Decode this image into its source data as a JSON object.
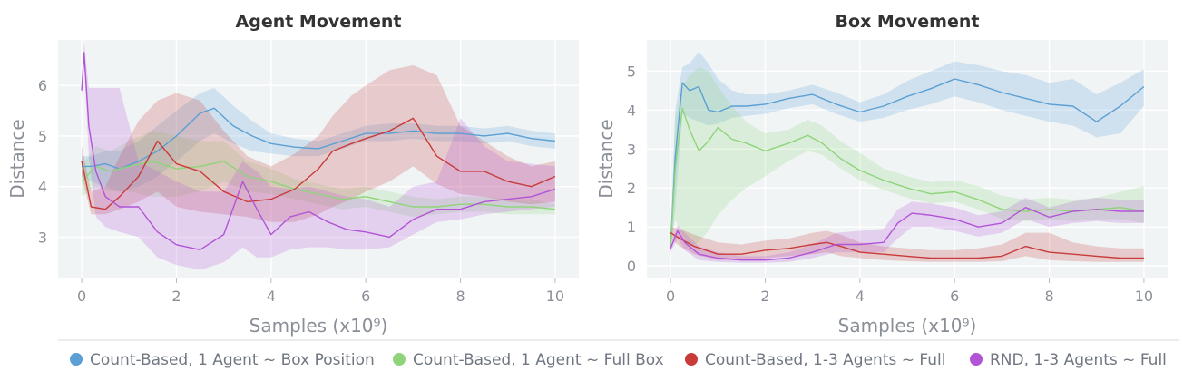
{
  "chart_data": [
    {
      "type": "line",
      "title": "Agent Movement",
      "xlabel": "Samples (x10⁹)",
      "ylabel": "Distance",
      "xlim": [
        -0.5,
        10.5
      ],
      "ylim": [
        2.2,
        6.9
      ],
      "xticks": [
        0,
        2,
        4,
        6,
        8,
        10
      ],
      "yticks": [
        3,
        4,
        5,
        6
      ],
      "grid": true,
      "series": [
        {
          "name": "Count-Based, 1 Agent ~ Box Position",
          "color": "#5b9fd4",
          "x": [
            0.0,
            0.2,
            0.5,
            0.8,
            1.2,
            1.6,
            2.0,
            2.5,
            2.8,
            3.2,
            3.6,
            4.0,
            4.5,
            5.0,
            5.5,
            6.0,
            6.5,
            7.0,
            7.5,
            8.0,
            8.5,
            9.0,
            9.5,
            10.0
          ],
          "y": [
            4.4,
            4.4,
            4.45,
            4.35,
            4.5,
            4.7,
            5.0,
            5.45,
            5.55,
            5.2,
            5.0,
            4.85,
            4.78,
            4.75,
            4.9,
            5.05,
            5.05,
            5.1,
            5.05,
            5.05,
            5.0,
            5.05,
            4.95,
            4.9
          ],
          "lower": [
            4.2,
            4.1,
            4.0,
            3.9,
            4.0,
            4.2,
            4.5,
            4.9,
            5.05,
            4.85,
            4.7,
            4.65,
            4.6,
            4.6,
            4.75,
            4.9,
            4.9,
            4.95,
            4.9,
            4.9,
            4.85,
            4.9,
            4.8,
            4.75
          ],
          "upper": [
            4.6,
            4.6,
            4.7,
            4.7,
            4.9,
            5.2,
            5.5,
            5.85,
            5.95,
            5.6,
            5.3,
            5.05,
            4.95,
            4.9,
            5.05,
            5.2,
            5.25,
            5.25,
            5.2,
            5.2,
            5.15,
            5.2,
            5.1,
            5.05
          ]
        },
        {
          "name": "Count-Based, 1 Agent ~ Full Box",
          "color": "#8fd47a",
          "x": [
            0.0,
            0.3,
            0.6,
            1.0,
            1.5,
            2.0,
            2.5,
            3.0,
            3.5,
            4.0,
            4.5,
            5.0,
            5.5,
            6.0,
            6.5,
            7.0,
            7.5,
            8.0,
            8.5,
            9.0,
            9.5,
            10.0
          ],
          "y": [
            4.1,
            4.4,
            4.3,
            4.4,
            4.5,
            4.35,
            4.4,
            4.5,
            4.2,
            4.1,
            3.95,
            3.85,
            3.75,
            3.8,
            3.7,
            3.6,
            3.6,
            3.65,
            3.65,
            3.6,
            3.6,
            3.55
          ],
          "lower": [
            3.8,
            4.0,
            3.9,
            3.9,
            3.8,
            3.8,
            3.9,
            4.1,
            3.9,
            3.85,
            3.75,
            3.65,
            3.55,
            3.6,
            3.5,
            3.4,
            3.45,
            3.5,
            3.5,
            3.45,
            3.45,
            3.45
          ],
          "upper": [
            4.4,
            4.8,
            4.7,
            4.9,
            5.1,
            5.0,
            4.9,
            4.9,
            4.5,
            4.35,
            4.15,
            4.05,
            3.95,
            4.0,
            3.9,
            3.8,
            3.75,
            3.8,
            3.8,
            3.75,
            3.75,
            3.65
          ]
        },
        {
          "name": "Count-Based, 1-3 Agents ~ Full",
          "color": "#c93a3a",
          "x": [
            0.0,
            0.2,
            0.5,
            0.8,
            1.2,
            1.6,
            2.0,
            2.5,
            3.0,
            3.5,
            4.0,
            4.5,
            5.0,
            5.3,
            5.7,
            6.0,
            6.5,
            7.0,
            7.5,
            8.0,
            8.5,
            9.0,
            9.5,
            10.0
          ],
          "y": [
            4.5,
            3.6,
            3.55,
            3.8,
            4.2,
            4.9,
            4.45,
            4.3,
            3.9,
            3.7,
            3.75,
            3.95,
            4.35,
            4.7,
            4.85,
            4.95,
            5.1,
            5.35,
            4.6,
            4.3,
            4.3,
            4.1,
            4.0,
            4.2
          ],
          "lower": [
            4.2,
            3.45,
            3.45,
            3.55,
            3.7,
            3.9,
            3.6,
            3.5,
            3.45,
            3.4,
            3.3,
            3.3,
            3.45,
            3.6,
            3.75,
            3.9,
            4.1,
            4.4,
            4.05,
            3.85,
            3.8,
            3.7,
            3.65,
            3.7
          ],
          "upper": [
            4.8,
            3.9,
            4.0,
            4.6,
            5.3,
            5.7,
            5.85,
            5.7,
            5.1,
            4.6,
            4.4,
            4.65,
            5.0,
            5.4,
            5.8,
            6.0,
            6.3,
            6.4,
            6.2,
            5.2,
            4.9,
            4.6,
            4.4,
            4.5
          ]
        },
        {
          "name": "RND, 1-3 Agents ~ Full",
          "color": "#b254d6",
          "x": [
            0.0,
            0.05,
            0.15,
            0.3,
            0.5,
            0.8,
            1.2,
            1.6,
            2.0,
            2.5,
            3.0,
            3.4,
            3.7,
            4.0,
            4.4,
            4.8,
            5.2,
            5.6,
            6.0,
            6.5,
            7.0,
            7.5,
            8.0,
            8.5,
            9.0,
            9.5,
            10.0
          ],
          "y": [
            5.9,
            6.65,
            5.2,
            4.3,
            3.8,
            3.6,
            3.6,
            3.1,
            2.85,
            2.75,
            3.05,
            4.1,
            3.55,
            3.05,
            3.4,
            3.5,
            3.3,
            3.15,
            3.1,
            3.0,
            3.35,
            3.55,
            3.55,
            3.7,
            3.75,
            3.8,
            3.95
          ],
          "lower": [
            5.7,
            6.4,
            4.6,
            3.4,
            3.2,
            3.1,
            3.0,
            2.6,
            2.45,
            2.35,
            2.5,
            2.8,
            2.6,
            2.6,
            2.75,
            2.8,
            2.8,
            2.75,
            2.75,
            2.8,
            3.05,
            3.3,
            3.35,
            3.45,
            3.5,
            3.55,
            3.6
          ],
          "upper": [
            6.1,
            6.85,
            5.95,
            5.95,
            5.95,
            5.95,
            4.5,
            4.3,
            4.1,
            3.9,
            3.9,
            4.5,
            4.3,
            4.0,
            3.95,
            4.0,
            3.9,
            3.8,
            3.75,
            3.6,
            4.0,
            4.1,
            5.35,
            4.8,
            4.5,
            4.45,
            4.4
          ]
        }
      ]
    },
    {
      "type": "line",
      "title": "Box Movement",
      "xlabel": "Samples (x10⁹)",
      "ylabel": "Distance",
      "xlim": [
        -0.5,
        10.5
      ],
      "ylim": [
        -0.3,
        5.8
      ],
      "xticks": [
        0,
        2,
        4,
        6,
        8,
        10
      ],
      "yticks": [
        0,
        1,
        2,
        3,
        4,
        5
      ],
      "grid": true,
      "series": [
        {
          "name": "Count-Based, 1 Agent ~ Box Position",
          "color": "#5b9fd4",
          "x": [
            0.0,
            0.1,
            0.25,
            0.4,
            0.6,
            0.8,
            1.0,
            1.3,
            1.6,
            2.0,
            2.5,
            3.0,
            3.5,
            4.0,
            4.5,
            5.0,
            5.5,
            6.0,
            6.5,
            7.0,
            7.5,
            8.0,
            8.5,
            9.0,
            9.5,
            10.0
          ],
          "y": [
            0.5,
            2.8,
            4.7,
            4.5,
            4.6,
            4.0,
            3.95,
            4.1,
            4.1,
            4.15,
            4.3,
            4.4,
            4.15,
            3.95,
            4.1,
            4.35,
            4.55,
            4.8,
            4.65,
            4.45,
            4.3,
            4.15,
            4.1,
            3.7,
            4.1,
            4.6
          ],
          "lower": [
            0.4,
            1.5,
            3.9,
            3.8,
            3.7,
            3.6,
            3.65,
            3.8,
            3.85,
            3.9,
            4.05,
            4.15,
            3.9,
            3.7,
            3.8,
            4.0,
            4.15,
            4.35,
            4.2,
            4.0,
            3.85,
            3.7,
            3.6,
            3.3,
            3.4,
            4.1
          ],
          "upper": [
            0.6,
            4.0,
            5.1,
            5.2,
            5.5,
            5.2,
            4.8,
            4.5,
            4.4,
            4.4,
            4.5,
            4.65,
            4.45,
            4.2,
            4.4,
            4.75,
            5.0,
            5.25,
            5.15,
            5.0,
            4.9,
            4.7,
            4.8,
            4.4,
            4.7,
            5.05
          ]
        },
        {
          "name": "Count-Based, 1 Agent ~ Full Box",
          "color": "#8fd47a",
          "x": [
            0.0,
            0.1,
            0.25,
            0.4,
            0.6,
            0.8,
            1.0,
            1.3,
            1.6,
            2.0,
            2.5,
            2.9,
            3.2,
            3.6,
            4.0,
            4.5,
            5.0,
            5.5,
            6.0,
            6.5,
            7.0,
            7.5,
            8.0,
            8.5,
            9.0,
            9.5,
            10.0
          ],
          "y": [
            0.5,
            2.5,
            4.05,
            3.5,
            2.95,
            3.2,
            3.55,
            3.25,
            3.15,
            2.95,
            3.15,
            3.35,
            3.15,
            2.75,
            2.45,
            2.2,
            2.0,
            1.85,
            1.9,
            1.7,
            1.45,
            1.4,
            1.45,
            1.4,
            1.45,
            1.5,
            1.4
          ],
          "lower": [
            0.4,
            1.2,
            0.8,
            0.5,
            0.6,
            0.9,
            1.3,
            1.7,
            2.0,
            2.3,
            2.7,
            2.95,
            2.85,
            2.5,
            2.2,
            1.95,
            1.75,
            1.6,
            1.65,
            1.45,
            1.2,
            1.15,
            1.2,
            1.15,
            1.2,
            1.2,
            1.1
          ],
          "upper": [
            0.6,
            3.8,
            4.6,
            4.9,
            5.1,
            5.0,
            4.6,
            4.1,
            3.7,
            3.4,
            3.5,
            3.75,
            3.6,
            3.2,
            2.9,
            2.5,
            2.3,
            2.15,
            2.2,
            2.05,
            1.8,
            1.7,
            1.75,
            1.7,
            1.75,
            1.9,
            2.05
          ]
        },
        {
          "name": "Count-Based, 1-3 Agents ~ Full",
          "color": "#c93a3a",
          "x": [
            0.0,
            0.2,
            0.5,
            1.0,
            1.5,
            2.0,
            2.5,
            3.0,
            3.3,
            3.6,
            4.0,
            4.5,
            5.0,
            5.5,
            6.0,
            6.5,
            7.0,
            7.5,
            8.0,
            8.5,
            9.0,
            9.5,
            10.0
          ],
          "y": [
            0.85,
            0.7,
            0.5,
            0.3,
            0.3,
            0.4,
            0.45,
            0.55,
            0.6,
            0.5,
            0.35,
            0.3,
            0.25,
            0.2,
            0.2,
            0.2,
            0.25,
            0.5,
            0.35,
            0.3,
            0.25,
            0.2,
            0.2
          ],
          "lower": [
            0.7,
            0.5,
            0.3,
            0.15,
            0.15,
            0.2,
            0.25,
            0.3,
            0.35,
            0.25,
            0.2,
            0.15,
            0.12,
            0.1,
            0.1,
            0.1,
            0.12,
            0.25,
            0.15,
            0.12,
            0.1,
            0.1,
            0.1
          ],
          "upper": [
            1.0,
            0.95,
            0.8,
            0.6,
            0.55,
            0.65,
            0.7,
            0.85,
            0.9,
            0.8,
            0.6,
            0.5,
            0.45,
            0.4,
            0.4,
            0.45,
            0.55,
            0.85,
            0.85,
            0.6,
            0.5,
            0.45,
            0.45
          ]
        },
        {
          "name": "RND, 1-3 Agents ~ Full",
          "color": "#b254d6",
          "x": [
            0.0,
            0.15,
            0.3,
            0.6,
            1.0,
            1.5,
            2.0,
            2.5,
            3.0,
            3.5,
            4.0,
            4.5,
            4.8,
            5.1,
            5.5,
            6.0,
            6.5,
            7.0,
            7.5,
            8.0,
            8.5,
            9.0,
            9.5,
            10.0
          ],
          "y": [
            0.45,
            0.9,
            0.6,
            0.3,
            0.2,
            0.15,
            0.15,
            0.2,
            0.35,
            0.55,
            0.55,
            0.6,
            1.1,
            1.35,
            1.3,
            1.2,
            1.0,
            1.1,
            1.5,
            1.25,
            1.4,
            1.45,
            1.4,
            1.4
          ],
          "lower": [
            0.35,
            0.7,
            0.4,
            0.15,
            0.1,
            0.08,
            0.08,
            0.1,
            0.2,
            0.35,
            0.35,
            0.35,
            0.7,
            1.0,
            1.0,
            0.9,
            0.75,
            0.85,
            1.2,
            1.0,
            1.1,
            1.15,
            1.1,
            1.1
          ],
          "upper": [
            0.55,
            1.05,
            0.85,
            0.5,
            0.35,
            0.25,
            0.25,
            0.35,
            0.55,
            0.85,
            0.9,
            0.95,
            1.45,
            1.65,
            1.6,
            1.5,
            1.3,
            1.4,
            1.75,
            1.5,
            1.65,
            1.75,
            1.7,
            1.7
          ]
        }
      ]
    }
  ],
  "legend": {
    "placement": "bottom",
    "items": [
      {
        "label": "Count-Based, 1 Agent ~ Box Position",
        "color": "#5b9fd4"
      },
      {
        "label": "Count-Based, 1 Agent ~ Full Box",
        "color": "#8fd47a"
      },
      {
        "label": "Count-Based, 1-3 Agents ~ Full",
        "color": "#c93a3a"
      },
      {
        "label": "RND, 1-3 Agents ~ Full",
        "color": "#b254d6"
      }
    ]
  }
}
